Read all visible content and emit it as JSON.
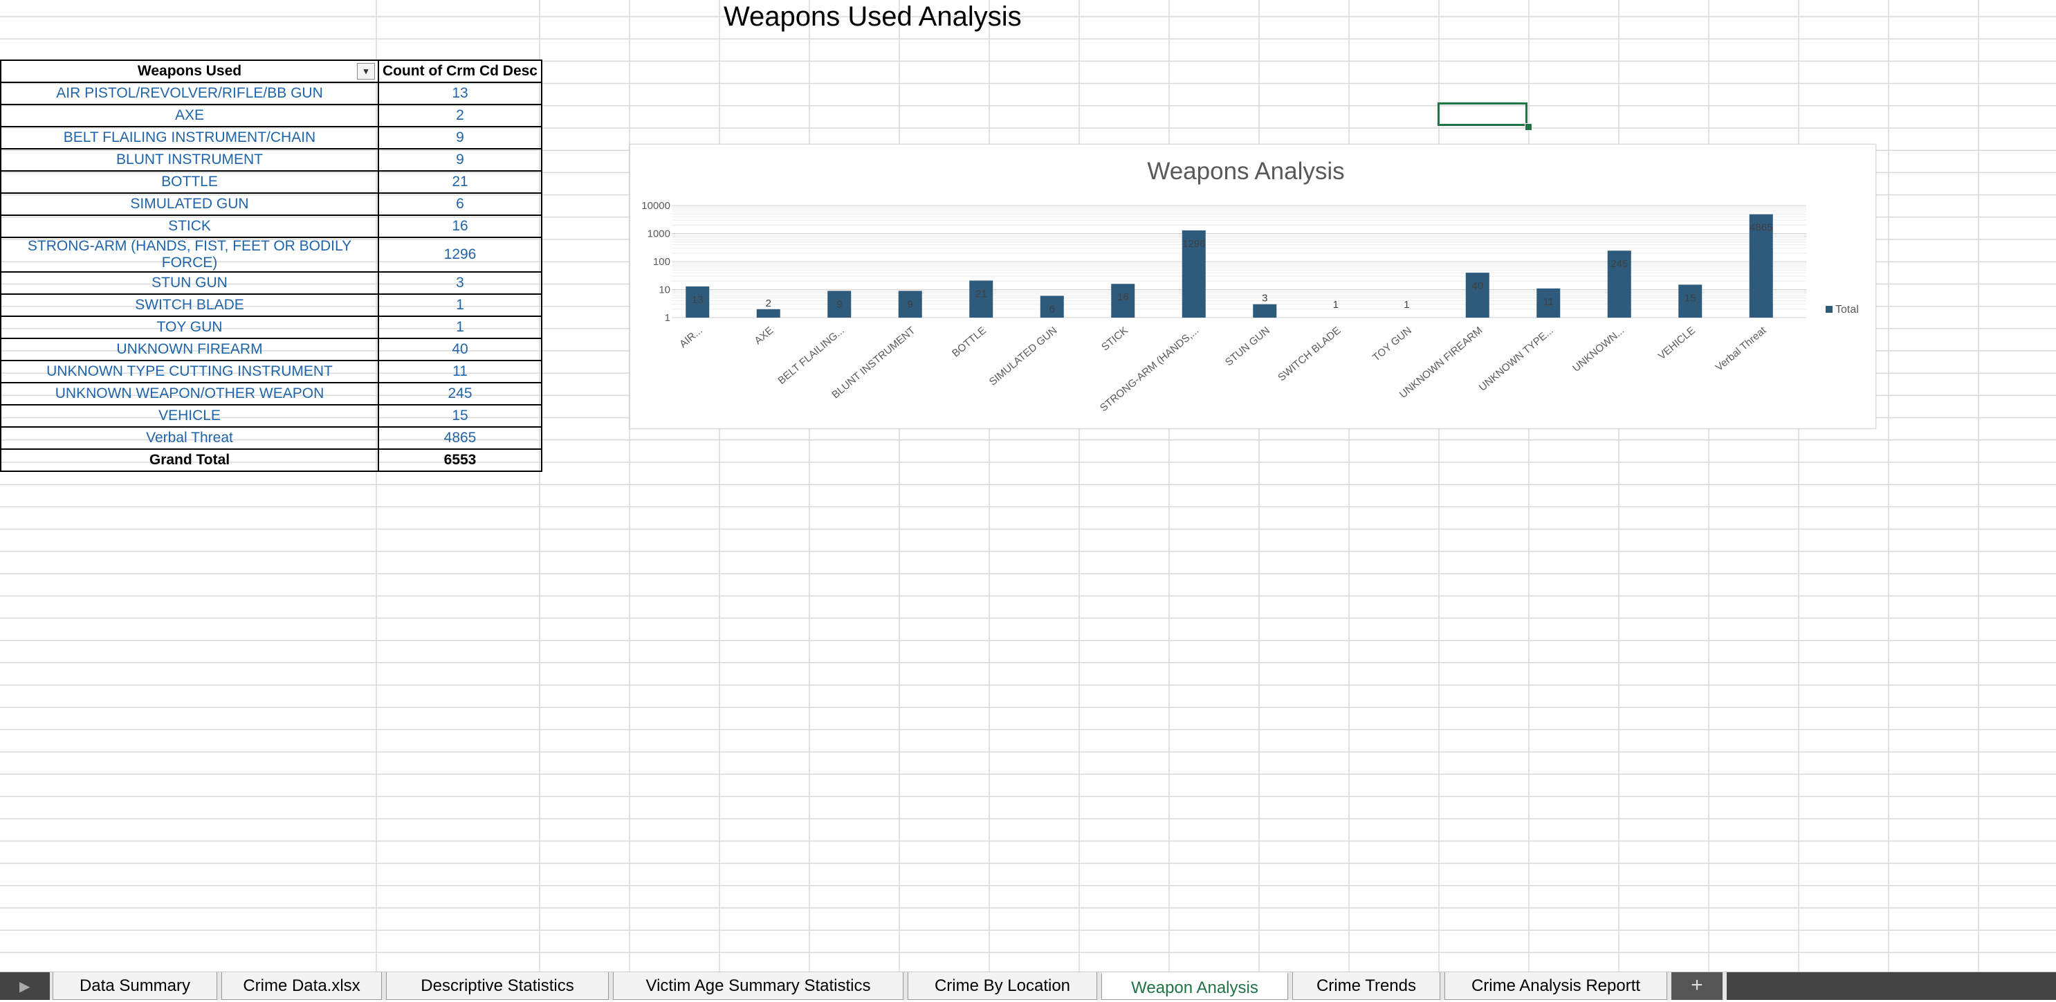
{
  "page_title": "Weapons Used Analysis",
  "pivot": {
    "header_weapon": "Weapons Used",
    "header_count": "Count of Crm Cd Desc",
    "filter_icon": "filter-dropdown-icon",
    "rows": [
      {
        "weapon": "AIR PISTOL/REVOLVER/RIFLE/BB GUN",
        "count": "13"
      },
      {
        "weapon": "AXE",
        "count": "2"
      },
      {
        "weapon": "BELT FLAILING INSTRUMENT/CHAIN",
        "count": "9"
      },
      {
        "weapon": "BLUNT INSTRUMENT",
        "count": "9"
      },
      {
        "weapon": "BOTTLE",
        "count": "21"
      },
      {
        "weapon": "SIMULATED GUN",
        "count": "6"
      },
      {
        "weapon": "STICK",
        "count": "16"
      },
      {
        "weapon": "STRONG-ARM (HANDS, FIST, FEET OR BODILY FORCE)",
        "count": "1296"
      },
      {
        "weapon": "STUN GUN",
        "count": "3"
      },
      {
        "weapon": "SWITCH BLADE",
        "count": "1"
      },
      {
        "weapon": "TOY GUN",
        "count": "1"
      },
      {
        "weapon": "UNKNOWN FIREARM",
        "count": "40"
      },
      {
        "weapon": "UNKNOWN TYPE CUTTING INSTRUMENT",
        "count": "11"
      },
      {
        "weapon": "UNKNOWN WEAPON/OTHER WEAPON",
        "count": "245"
      },
      {
        "weapon": "VEHICLE",
        "count": "15"
      },
      {
        "weapon": "Verbal Threat",
        "count": "4865"
      }
    ],
    "total_label": "Grand Total",
    "total_value": "6553"
  },
  "chart_data": {
    "type": "bar",
    "title": "Weapons Analysis",
    "y_scale": "log",
    "ylim": [
      1,
      10000
    ],
    "y_ticks": [
      "1",
      "10",
      "100",
      "1000",
      "10000"
    ],
    "categories": [
      "AIR...",
      "AXE",
      "BELT FLAILING...",
      "BLUNT INSTRUMENT",
      "BOTTLE",
      "SIMULATED GUN",
      "STICK",
      "STRONG-ARM (HANDS,...",
      "STUN GUN",
      "SWITCH BLADE",
      "TOY GUN",
      "UNKNOWN FIREARM",
      "UNKNOWN TYPE...",
      "UNKNOWN...",
      "VEHICLE",
      "Verbal Threat"
    ],
    "series": [
      {
        "name": "Total",
        "values": [
          13,
          2,
          9,
          9,
          21,
          6,
          16,
          1296,
          3,
          1,
          1,
          40,
          11,
          245,
          15,
          4865
        ]
      }
    ],
    "data_labels": [
      "13",
      "2",
      "9",
      "9",
      "21",
      "6",
      "16",
      "1296",
      "3",
      "1",
      "1",
      "40",
      "11",
      "245",
      "15",
      "4865"
    ],
    "legend_position": "right",
    "grid": true,
    "bar_color": "#2e5a7c"
  },
  "sheet_tabs": [
    {
      "label": "Data Summary",
      "active": false
    },
    {
      "label": "Crime Data.xlsx",
      "active": false
    },
    {
      "label": "Descriptive Statistics",
      "active": false
    },
    {
      "label": "Victim Age Summary Statistics",
      "active": false
    },
    {
      "label": "Crime By Location",
      "active": false
    },
    {
      "label": "Weapon Analysis",
      "active": true
    },
    {
      "label": "Crime Trends",
      "active": false
    },
    {
      "label": "Crime Analysis Reportt",
      "active": false
    }
  ],
  "add_sheet_label": "+",
  "nav_icon": "sheet-scroll-left-icon",
  "colors": {
    "accent": "#217346",
    "link_text": "#1f64a8"
  }
}
